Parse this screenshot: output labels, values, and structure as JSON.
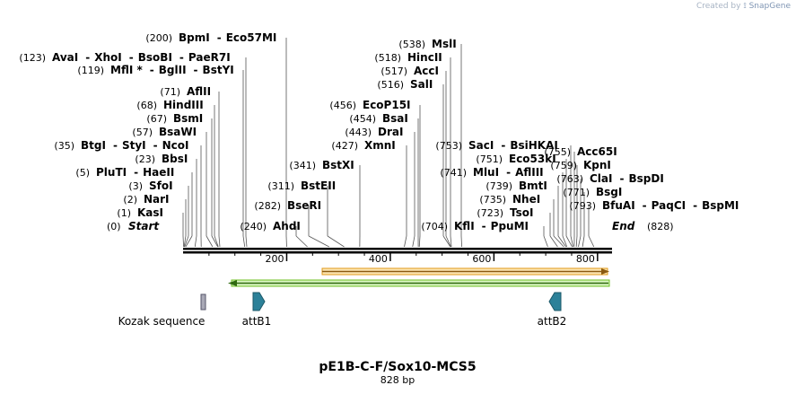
{
  "credit": {
    "prefix": "Created by",
    "brand": "SnapGene"
  },
  "sequence": {
    "name": "pE1B-C-F/Sox10-MCS5",
    "length_label": "828 bp",
    "length": 828,
    "start_label": "Start",
    "end_label": "End",
    "start_pos": "(0)",
    "end_pos": "(828)"
  },
  "ruler": {
    "ticks": [
      "200",
      "400",
      "600",
      "800"
    ]
  },
  "sites": [
    {
      "pos": 1,
      "pos_label": "(1)",
      "names": [
        "KasI"
      ]
    },
    {
      "pos": 2,
      "pos_label": "(2)",
      "names": [
        "NarI"
      ]
    },
    {
      "pos": 3,
      "pos_label": "(3)",
      "names": [
        "SfoI"
      ]
    },
    {
      "pos": 5,
      "pos_label": "(5)",
      "names": [
        "PluTI",
        "HaeII"
      ]
    },
    {
      "pos": 23,
      "pos_label": "(23)",
      "names": [
        "BbsI"
      ]
    },
    {
      "pos": 35,
      "pos_label": "(35)",
      "names": [
        "BtgI",
        "StyI",
        "NcoI"
      ]
    },
    {
      "pos": 57,
      "pos_label": "(57)",
      "names": [
        "BsaWI"
      ]
    },
    {
      "pos": 67,
      "pos_label": "(67)",
      "names": [
        "BsmI"
      ]
    },
    {
      "pos": 68,
      "pos_label": "(68)",
      "names": [
        "HindIII"
      ]
    },
    {
      "pos": 71,
      "pos_label": "(71)",
      "names": [
        "AflII"
      ]
    },
    {
      "pos": 119,
      "pos_label": "(119)",
      "names": [
        "MflI *",
        "BglII",
        "BstYI"
      ]
    },
    {
      "pos": 123,
      "pos_label": "(123)",
      "names": [
        "AvaI",
        "XhoI",
        "BsoBI",
        "PaeR7I"
      ]
    },
    {
      "pos": 200,
      "pos_label": "(200)",
      "names": [
        "BpmI",
        "Eco57MI"
      ]
    },
    {
      "pos": 240,
      "pos_label": "(240)",
      "names": [
        "AhdI"
      ]
    },
    {
      "pos": 282,
      "pos_label": "(282)",
      "names": [
        "BseRI"
      ]
    },
    {
      "pos": 311,
      "pos_label": "(311)",
      "names": [
        "BstEII"
      ]
    },
    {
      "pos": 341,
      "pos_label": "(341)",
      "names": [
        "BstXI"
      ]
    },
    {
      "pos": 427,
      "pos_label": "(427)",
      "names": [
        "XmnI"
      ]
    },
    {
      "pos": 443,
      "pos_label": "(443)",
      "names": [
        "DraI"
      ]
    },
    {
      "pos": 454,
      "pos_label": "(454)",
      "names": [
        "BsaI"
      ]
    },
    {
      "pos": 456,
      "pos_label": "(456)",
      "names": [
        "EcoP15I"
      ]
    },
    {
      "pos": 516,
      "pos_label": "(516)",
      "names": [
        "SalI"
      ]
    },
    {
      "pos": 517,
      "pos_label": "(517)",
      "names": [
        "AccI"
      ]
    },
    {
      "pos": 518,
      "pos_label": "(518)",
      "names": [
        "HincII"
      ]
    },
    {
      "pos": 538,
      "pos_label": "(538)",
      "names": [
        "MslI"
      ]
    },
    {
      "pos": 704,
      "pos_label": "(704)",
      "names": [
        "KflI",
        "PpuMI"
      ]
    },
    {
      "pos": 723,
      "pos_label": "(723)",
      "names": [
        "TsoI"
      ]
    },
    {
      "pos": 735,
      "pos_label": "(735)",
      "names": [
        "NheI"
      ]
    },
    {
      "pos": 739,
      "pos_label": "(739)",
      "names": [
        "BmtI"
      ]
    },
    {
      "pos": 741,
      "pos_label": "(741)",
      "names": [
        "MluI",
        "AflIII"
      ]
    },
    {
      "pos": 751,
      "pos_label": "(751)",
      "names": [
        "Eco53kI"
      ]
    },
    {
      "pos": 753,
      "pos_label": "(753)",
      "names": [
        "SacI",
        "BsiHKAI"
      ]
    },
    {
      "pos": 755,
      "pos_label": "(755)",
      "names": [
        "Acc65I"
      ]
    },
    {
      "pos": 759,
      "pos_label": "(759)",
      "names": [
        "KpnI"
      ]
    },
    {
      "pos": 763,
      "pos_label": "(763)",
      "names": [
        "ClaI",
        "BspDI"
      ]
    },
    {
      "pos": 771,
      "pos_label": "(771)",
      "names": [
        "BsgI"
      ]
    },
    {
      "pos": 793,
      "pos_label": "(793)",
      "names": [
        "BfuAI",
        "PaqCI",
        "BspMI"
      ]
    }
  ],
  "features": [
    {
      "name": "Kozak sequence",
      "type": "misc",
      "color": "#a9a9b6"
    },
    {
      "name": "attB1",
      "type": "arrow-right",
      "color": "#2c8199"
    },
    {
      "name": "attB2",
      "type": "arrow-left",
      "color": "#2c8199"
    }
  ],
  "orfs": [
    {
      "direction": "forward",
      "color": "#f0a020",
      "start": 265,
      "end": 828
    },
    {
      "direction": "reverse",
      "color": "#6cbf20",
      "start": 85,
      "end": 828
    }
  ]
}
